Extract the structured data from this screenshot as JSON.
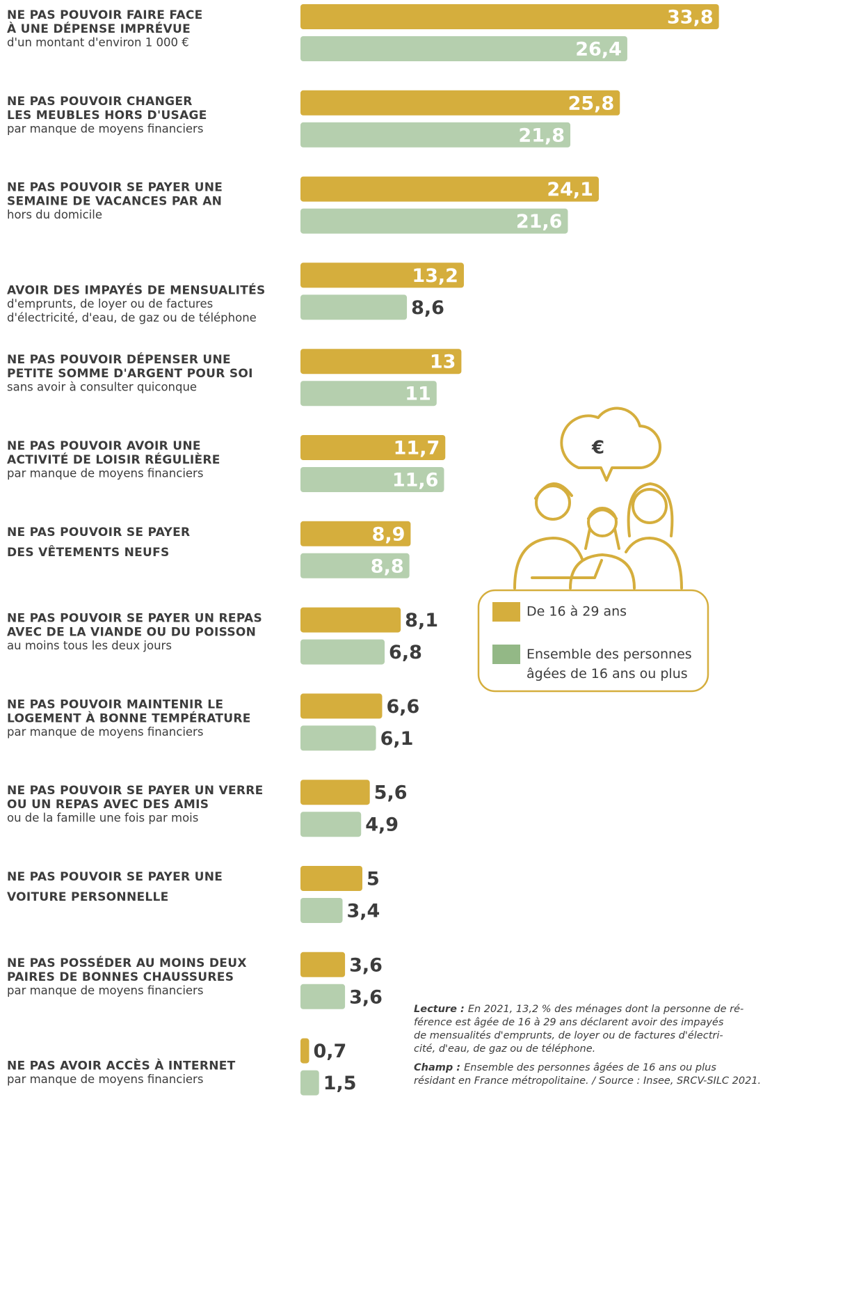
{
  "chart_data": {
    "type": "hbar-grouped",
    "xlim": [
      0,
      40
    ],
    "categories": [
      {
        "title_lines": [
          "NE PAS POUVOIR FAIRE FACE",
          "À UNE DÉPENSE IMPRÉVUE"
        ],
        "detail_lines": [
          "d'un montant d'environ 1 000 €"
        ]
      },
      {
        "title_lines": [
          "NE PAS POUVOIR CHANGER",
          "LES MEUBLES HORS D'USAGE"
        ],
        "detail_lines": [
          "par manque de moyens financiers"
        ]
      },
      {
        "title_lines": [
          "NE PAS POUVOIR SE PAYER UNE",
          "SEMAINE DE VACANCES PAR AN"
        ],
        "detail_lines": [
          "hors du domicile"
        ]
      },
      {
        "title_lines": [
          "AVOIR DES IMPAYÉS DE MENSUALITÉS"
        ],
        "detail_lines": [
          "d'emprunts, de loyer ou de factures",
          "d'électricité, d'eau, de gaz ou de téléphone"
        ]
      },
      {
        "title_lines": [
          "NE PAS POUVOIR DÉPENSER UNE",
          "PETITE SOMME D'ARGENT POUR SOI"
        ],
        "detail_lines": [
          "sans avoir à consulter quiconque"
        ]
      },
      {
        "title_lines": [
          "NE PAS POUVOIR AVOIR UNE",
          "ACTIVITÉ DE LOISIR RÉGULIÈRE"
        ],
        "detail_lines": [
          "par manque de moyens financiers"
        ]
      },
      {
        "title_lines": [
          "NE PAS POUVOIR SE PAYER",
          "DES VÊTEMENTS NEUFS"
        ],
        "detail_lines": []
      },
      {
        "title_lines": [
          "NE PAS POUVOIR SE PAYER UN REPAS",
          "AVEC DE LA VIANDE OU DU POISSON"
        ],
        "detail_lines": [
          "au moins tous les deux jours"
        ]
      },
      {
        "title_lines": [
          "NE PAS POUVOIR MAINTENIR LE",
          "LOGEMENT À BONNE TEMPÉRATURE"
        ],
        "detail_lines": [
          "par manque de moyens financiers"
        ]
      },
      {
        "title_lines": [
          "NE PAS POUVOIR SE PAYER UN VERRE",
          "OU UN REPAS AVEC DES AMIS"
        ],
        "detail_lines": [
          "ou de la famille une fois par mois"
        ]
      },
      {
        "title_lines": [
          "NE PAS POUVOIR SE PAYER UNE",
          "VOITURE PERSONNELLE"
        ],
        "detail_lines": []
      },
      {
        "title_lines": [
          "NE PAS POSSÉDER AU MOINS DEUX",
          "PAIRES DE BONNES CHAUSSURES"
        ],
        "detail_lines": [
          "par manque de moyens financiers"
        ]
      },
      {
        "title_lines": [
          "NE PAS AVOIR ACCÈS À INTERNET"
        ],
        "detail_lines": [
          "par manque de moyens financiers"
        ]
      }
    ],
    "series": [
      {
        "name": "De 16 à 29 ans",
        "color": "#d5ae3d",
        "values": [
          33.8,
          25.8,
          24.1,
          13.2,
          13,
          11.7,
          8.9,
          8.1,
          6.6,
          5.6,
          5,
          3.6,
          0.7
        ],
        "value_labels": [
          "33,8",
          "25,8",
          "24,1",
          "13,2",
          "13",
          "11,7",
          "8,9",
          "8,1",
          "6,6",
          "5,6",
          "5",
          "3,6",
          "0,7"
        ]
      },
      {
        "name": "Ensemble des personnes âgées de 16 ans ou plus",
        "color": "#b5cfae",
        "values": [
          26.4,
          21.8,
          21.6,
          8.6,
          11,
          11.6,
          8.8,
          6.8,
          6.1,
          4.9,
          3.4,
          3.6,
          1.5
        ],
        "value_labels": [
          "26,4",
          "21,8",
          "21,6",
          "8,6",
          "11",
          "11,6",
          "8,8",
          "6,8",
          "6,1",
          "4,9",
          "3,4",
          "3,6",
          "1,5"
        ]
      }
    ],
    "notes": [
      {
        "label": "Lecture :",
        "lines": [
          "En 2021, 13,2 % des ménages dont la personne de ré-",
          "férence est âgée de 16 à 29 ans déclarent avoir des impayés",
          "de mensualités d'emprunts, de loyer ou de factures d'électri-",
          "cité, d'eau, de gaz ou de téléphone."
        ]
      },
      {
        "label": "Champ :",
        "lines": [
          "Ensemble des personnes âgées de 16 ans ou plus",
          "résidant en France métropolitaine. / Source : Insee, SRCV-SILC 2021."
        ]
      }
    ]
  }
}
